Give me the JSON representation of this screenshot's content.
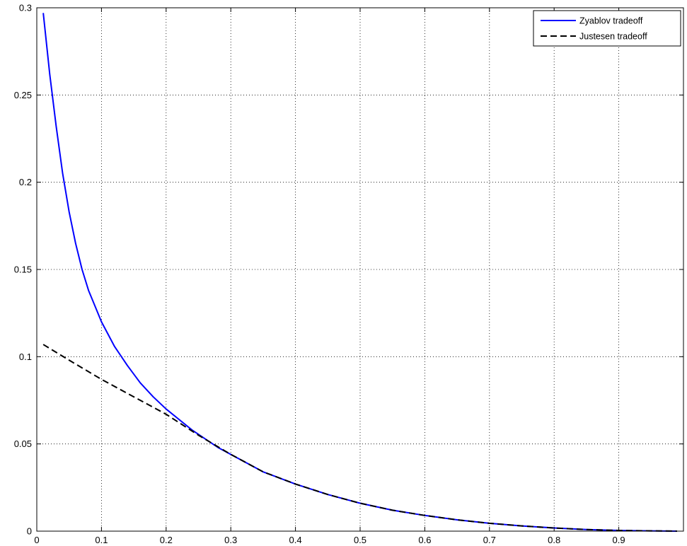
{
  "chart_data": {
    "type": "line",
    "xlim": [
      0,
      1
    ],
    "ylim": [
      0,
      0.3
    ],
    "x_ticks": [
      0,
      0.1,
      0.2,
      0.3,
      0.4,
      0.5,
      0.6,
      0.7,
      0.8,
      0.9
    ],
    "x_tick_labels": [
      "0",
      "0.1",
      "0.2",
      "0.3",
      "0.4",
      "0.5",
      "0.6",
      "0.7",
      "0.8",
      "0.9"
    ],
    "y_ticks": [
      0,
      0.05,
      0.1,
      0.15,
      0.2,
      0.25,
      0.3
    ],
    "y_tick_labels": [
      "0",
      "0.05",
      "0.1",
      "0.15",
      "0.2",
      "0.25",
      "0.3"
    ],
    "grid": true,
    "legend_position": "top-right",
    "series": [
      {
        "name": "Zyablov tradeoff",
        "color": "#0000ff",
        "style": "solid",
        "x": [
          0.01,
          0.02,
          0.03,
          0.04,
          0.05,
          0.06,
          0.07,
          0.08,
          0.09,
          0.1,
          0.12,
          0.14,
          0.16,
          0.18,
          0.2,
          0.22,
          0.24,
          0.26,
          0.28,
          0.3,
          0.35,
          0.4,
          0.45,
          0.5,
          0.55,
          0.6,
          0.65,
          0.7,
          0.75,
          0.8,
          0.85,
          0.9,
          0.95,
          0.99
        ],
        "y": [
          0.297,
          0.262,
          0.232,
          0.205,
          0.183,
          0.165,
          0.15,
          0.138,
          0.129,
          0.12,
          0.106,
          0.095,
          0.085,
          0.077,
          0.07,
          0.064,
          0.058,
          0.053,
          0.048,
          0.044,
          0.034,
          0.027,
          0.021,
          0.016,
          0.012,
          0.009,
          0.0065,
          0.0045,
          0.003,
          0.0018,
          0.0009,
          0.0004,
          0.00015,
          2e-05
        ]
      },
      {
        "name": "Justesen tradeoff",
        "color": "#000000",
        "style": "dashed",
        "x": [
          0.01,
          0.05,
          0.1,
          0.15,
          0.2,
          0.25,
          0.3,
          0.35,
          0.4,
          0.45,
          0.5,
          0.55,
          0.6,
          0.65,
          0.7,
          0.75,
          0.8,
          0.85,
          0.9,
          0.95,
          0.99
        ],
        "y": [
          0.107,
          0.098,
          0.087,
          0.077,
          0.067,
          0.055,
          0.044,
          0.034,
          0.027,
          0.021,
          0.016,
          0.012,
          0.009,
          0.0065,
          0.0045,
          0.003,
          0.0018,
          0.0009,
          0.0004,
          0.00015,
          2e-05
        ]
      }
    ]
  }
}
